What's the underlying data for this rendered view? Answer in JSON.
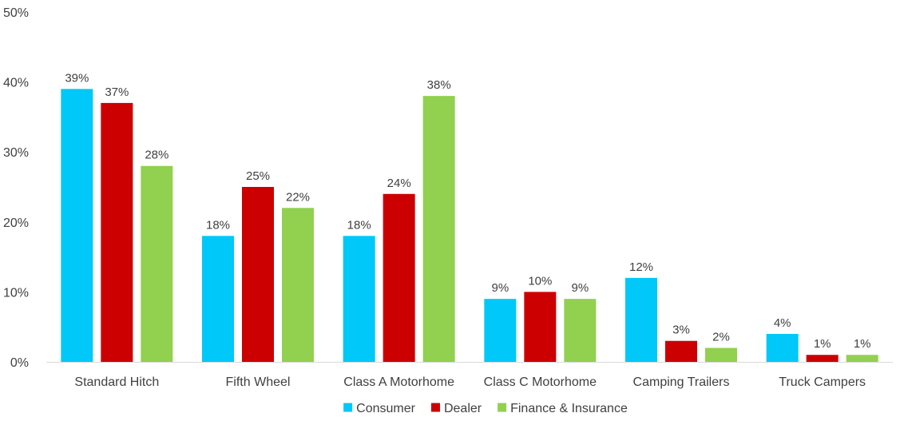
{
  "chart_data": {
    "type": "bar",
    "categories": [
      "Standard Hitch",
      "Fifth Wheel",
      "Class A Motorhome",
      "Class C Motorhome",
      "Camping Trailers",
      "Truck Campers"
    ],
    "series": [
      {
        "name": "Consumer",
        "color": "#00C8F8",
        "values": [
          39,
          18,
          18,
          9,
          12,
          4
        ],
        "labels": [
          "39%",
          "18%",
          "18%",
          "9%",
          "12%",
          "4%"
        ]
      },
      {
        "name": "Dealer",
        "color": "#CC0000",
        "values": [
          37,
          25,
          24,
          10,
          3,
          1
        ],
        "labels": [
          "37%",
          "25%",
          "24%",
          "10%",
          "3%",
          "1%"
        ]
      },
      {
        "name": "Finance & Insurance",
        "color": "#92D050",
        "values": [
          28,
          22,
          38,
          9,
          2,
          1
        ],
        "labels": [
          "28%",
          "22%",
          "38%",
          "9%",
          "2%",
          "1%"
        ]
      }
    ],
    "ylim": [
      0,
      50
    ],
    "yticks": [
      0,
      10,
      20,
      30,
      40,
      50
    ],
    "ytick_labels": [
      "0%",
      "10%",
      "20%",
      "30%",
      "40%",
      "50%"
    ],
    "grid": false,
    "legend_position": "bottom"
  }
}
